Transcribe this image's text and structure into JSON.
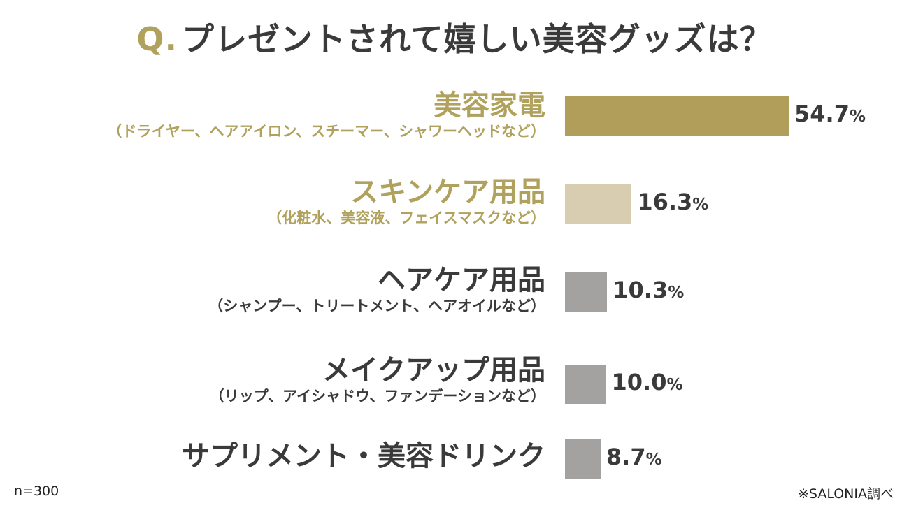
{
  "header": {
    "q_mark": "Q.",
    "question": "プレゼントされて嬉しい美容グッズは？"
  },
  "chart_data": {
    "type": "bar",
    "orientation": "horizontal",
    "categories": [
      {
        "label": "美容家電",
        "sub": "（ドライヤー、ヘアアイロン、スチーマー、シャワーヘッドなど）"
      },
      {
        "label": "スキンケア用品",
        "sub": "（化粧水、美容液、フェイスマスクなど）"
      },
      {
        "label": "ヘアケア用品",
        "sub": "（シャンプー、トリートメント、ヘアオイルなど）"
      },
      {
        "label": "メイクアップ用品",
        "sub": "（リップ、アイシャドウ、ファンデーションなど）"
      },
      {
        "label": "サプリメント・美容ドリンク",
        "sub": ""
      }
    ],
    "values": [
      54.7,
      16.3,
      10.3,
      10.0,
      8.7
    ],
    "value_labels": [
      "54.7",
      "16.3",
      "10.3",
      "10.0",
      "8.7"
    ],
    "unit": "%",
    "colors": [
      "#b09e5a",
      "#d9cdb1",
      "#a3a2a0",
      "#a3a2a0",
      "#a3a2a0"
    ],
    "label_colors": [
      "#b0a25d",
      "#b0a25d",
      "#3a3a3a",
      "#3a3a3a",
      "#3a3a3a"
    ]
  },
  "footer": {
    "sample": "n=300",
    "source": "※SALONIA調べ"
  }
}
